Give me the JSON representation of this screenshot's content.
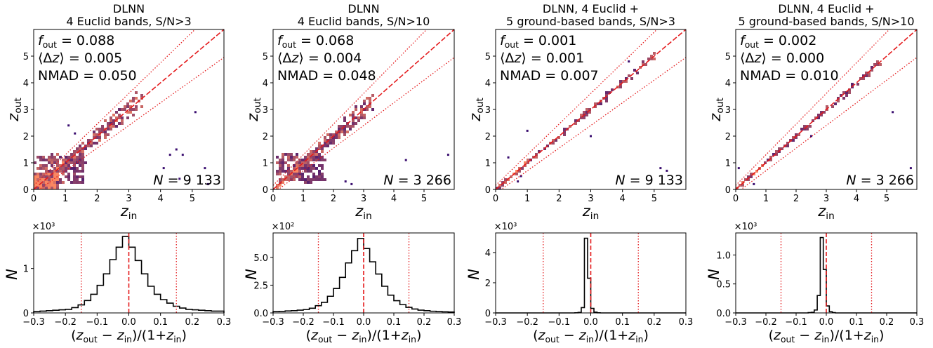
{
  "colors": {
    "one_to_one": "#e41a1c",
    "outlier_bounds": "#e41a1c",
    "hist_line": "#000000",
    "density_low": "#3b0f70",
    "density_high": "#fb8761"
  },
  "chart_data": [
    {
      "type": "heatmap",
      "title_line1": "DLNN",
      "title_line2": "4 Euclid bands, S/N>3",
      "stat_fout": "0.088",
      "stat_dz": "0.005",
      "stat_nmad": "0.050",
      "n_label": "N = 9 133",
      "xlabel": "z_in",
      "ylabel": "z_out",
      "xlim": [
        0,
        6
      ],
      "ylim": [
        0,
        6
      ],
      "xticks": [
        0,
        1,
        2,
        3,
        4,
        5
      ],
      "yticks": [
        0,
        1,
        2,
        3,
        4,
        5
      ],
      "one_to_one": [
        [
          0,
          0
        ],
        [
          6,
          6
        ]
      ],
      "outlier_limits": [
        0.15,
        -0.15
      ],
      "clusters": [
        {
          "x": [
            0.05,
            1.6
          ],
          "y": [
            0.2,
            1.3
          ],
          "density": 0.55
        },
        {
          "x": [
            0.1,
            3.4
          ],
          "y": [
            0.1,
            3.3
          ],
          "density": 0.9,
          "diagonal": true
        },
        {
          "x": [
            0.0,
            0.8
          ],
          "y": [
            0.0,
            0.6
          ],
          "density": 1.0
        }
      ],
      "outliers": [
        [
          4.5,
          1.5
        ],
        [
          4.7,
          1.3
        ],
        [
          4.6,
          0.4
        ],
        [
          5.4,
          0.8
        ],
        [
          5.1,
          2.9
        ],
        [
          5.5,
          0.2
        ],
        [
          4.3,
          1.3
        ],
        [
          1.1,
          2.4
        ],
        [
          1.3,
          2.1
        ],
        [
          4.1,
          0.8
        ]
      ]
    },
    {
      "type": "heatmap",
      "title_line1": "DLNN",
      "title_line2": "4 Euclid bands, S/N>10",
      "stat_fout": "0.068",
      "stat_dz": "0.004",
      "stat_nmad": "0.048",
      "n_label": "N = 3 266",
      "xlabel": "z_in",
      "ylabel": "z_out",
      "xlim": [
        0,
        6
      ],
      "ylim": [
        0,
        6
      ],
      "xticks": [
        0,
        1,
        2,
        3,
        4,
        5
      ],
      "yticks": [
        0,
        1,
        2,
        3,
        4,
        5
      ],
      "one_to_one": [
        [
          0,
          0
        ],
        [
          6,
          6
        ]
      ],
      "outlier_limits": [
        0.15,
        -0.15
      ],
      "clusters": [
        {
          "x": [
            0.1,
            1.7
          ],
          "y": [
            0.3,
            1.3
          ],
          "density": 0.5
        },
        {
          "x": [
            0.1,
            3.3
          ],
          "y": [
            0.1,
            3.2
          ],
          "density": 0.85,
          "diagonal": true
        }
      ],
      "outliers": [
        [
          4.4,
          1.1
        ],
        [
          5.8,
          1.3
        ],
        [
          2.4,
          0.3
        ],
        [
          2.6,
          0.2
        ]
      ]
    },
    {
      "type": "heatmap",
      "title_line1": "DLNN, 4 Euclid +",
      "title_line2": "5 ground-based bands, S/N>3",
      "stat_fout": "0.001",
      "stat_dz": "0.001",
      "stat_nmad": "0.007",
      "n_label": "N = 9 133",
      "xlabel": "z_in",
      "ylabel": "z_out",
      "xlim": [
        0,
        6
      ],
      "ylim": [
        0,
        6
      ],
      "xticks": [
        0,
        1,
        2,
        3,
        4,
        5
      ],
      "yticks": [
        0,
        1,
        2,
        3,
        4,
        5
      ],
      "one_to_one": [
        [
          0,
          0
        ],
        [
          6,
          6
        ]
      ],
      "outlier_limits": [
        0.15,
        -0.15
      ],
      "clusters": [
        {
          "x": [
            0.05,
            5.0
          ],
          "y": [
            0.05,
            5.0
          ],
          "density": 0.8,
          "diagonal": true,
          "tight": true
        }
      ],
      "outliers": [
        [
          0.8,
          0.5
        ],
        [
          0.7,
          0.3
        ],
        [
          5.2,
          0.8
        ],
        [
          5.4,
          0.7
        ],
        [
          0.4,
          1.2
        ],
        [
          1.0,
          2.2
        ],
        [
          3.0,
          2.0
        ],
        [
          4.2,
          4.8
        ]
      ]
    },
    {
      "type": "heatmap",
      "title_line1": "DLNN, 4 Euclid +",
      "title_line2": "5 ground-based bands, S/N>10",
      "stat_fout": "0.002",
      "stat_dz": "0.000",
      "stat_nmad": "0.010",
      "n_label": "N = 3 266",
      "xlabel": "z_in",
      "ylabel": "z_out",
      "xlim": [
        0,
        6
      ],
      "ylim": [
        0,
        6
      ],
      "xticks": [
        0,
        1,
        2,
        3,
        4,
        5
      ],
      "yticks": [
        0,
        1,
        2,
        3,
        4,
        5
      ],
      "one_to_one": [
        [
          0,
          0
        ],
        [
          6,
          6
        ]
      ],
      "outlier_limits": [
        0.15,
        -0.15
      ],
      "clusters": [
        {
          "x": [
            0.05,
            4.8
          ],
          "y": [
            0.05,
            4.8
          ],
          "density": 0.7,
          "diagonal": true,
          "tight": true
        }
      ],
      "outliers": [
        [
          0.1,
          0.8
        ],
        [
          5.2,
          2.9
        ],
        [
          5.8,
          0.8
        ],
        [
          2.5,
          2.0
        ],
        [
          0.6,
          0.2
        ]
      ]
    },
    {
      "type": "line",
      "subtype": "step-histogram",
      "xlabel": "(z_out − z_in)/(1+z_in)",
      "ylabel": "N",
      "multiplier": "×10³",
      "xlim": [
        -0.3,
        0.3
      ],
      "ylim": [
        0,
        1.8
      ],
      "xticks": [
        -0.3,
        -0.2,
        -0.1,
        0.0,
        0.1,
        0.2,
        0.3
      ],
      "yticks": [
        0,
        1
      ],
      "vlines_dotted": [
        -0.15,
        0.15
      ],
      "vline_dashed": 0.0,
      "bin_width": 0.02,
      "bins_start": -0.3,
      "values": [
        0.03,
        0.04,
        0.05,
        0.06,
        0.07,
        0.08,
        0.12,
        0.18,
        0.28,
        0.42,
        0.62,
        0.88,
        1.2,
        1.48,
        1.72,
        1.48,
        1.18,
        0.88,
        0.6,
        0.42,
        0.3,
        0.22,
        0.15,
        0.11,
        0.08,
        0.07,
        0.06,
        0.05,
        0.04,
        0.04
      ]
    },
    {
      "type": "line",
      "subtype": "step-histogram",
      "xlabel": "(z_out − z_in)/(1+z_in)",
      "ylabel": "N",
      "multiplier": "×10²",
      "xlim": [
        -0.3,
        0.3
      ],
      "ylim": [
        0,
        7.2
      ],
      "xticks": [
        -0.3,
        -0.2,
        -0.1,
        0.0,
        0.1,
        0.2,
        0.3
      ],
      "yticks": [
        0.0,
        2.5,
        5.0
      ],
      "vlines_dotted": [
        -0.15,
        0.15
      ],
      "vline_dashed": 0.0,
      "bin_width": 0.02,
      "bins_start": -0.3,
      "values": [
        0.12,
        0.14,
        0.18,
        0.2,
        0.25,
        0.3,
        0.42,
        0.65,
        0.95,
        1.5,
        2.2,
        3.2,
        4.5,
        5.6,
        6.7,
        5.8,
        4.6,
        3.5,
        2.4,
        1.6,
        1.1,
        0.75,
        0.5,
        0.35,
        0.25,
        0.2,
        0.15,
        0.12,
        0.1,
        0.08
      ]
    },
    {
      "type": "line",
      "subtype": "step-histogram",
      "xlabel": "(z_out − z_in)/(1+z_in)",
      "ylabel": "N",
      "multiplier": "×10³",
      "xlim": [
        -0.3,
        0.3
      ],
      "ylim": [
        0,
        5.3
      ],
      "xticks": [
        -0.3,
        -0.2,
        -0.1,
        0.0,
        0.1,
        0.2,
        0.3
      ],
      "yticks": [
        0,
        2,
        4
      ],
      "vlines_dotted": [
        -0.15,
        0.15
      ],
      "vline_dashed": 0.0,
      "bin_width": 0.01,
      "bins_start": -0.3,
      "values": [
        0,
        0,
        0,
        0,
        0,
        0,
        0,
        0,
        0,
        0,
        0,
        0,
        0,
        0,
        0,
        0,
        0,
        0,
        0,
        0,
        0,
        0,
        0,
        0,
        0,
        0.01,
        0.03,
        0.35,
        4.95,
        2.3,
        0.3,
        0.05,
        0.01,
        0,
        0,
        0,
        0,
        0,
        0,
        0,
        0,
        0,
        0,
        0,
        0,
        0,
        0,
        0,
        0,
        0,
        0,
        0,
        0,
        0,
        0,
        0,
        0,
        0,
        0,
        0
      ]
    },
    {
      "type": "line",
      "subtype": "step-histogram",
      "xlabel": "(z_out − z_in)/(1+z_in)",
      "ylabel": "N",
      "multiplier": "×10³",
      "xlim": [
        -0.3,
        0.3
      ],
      "ylim": [
        0,
        1.38
      ],
      "xticks": [
        -0.3,
        -0.2,
        -0.1,
        0.0,
        0.1,
        0.2,
        0.3
      ],
      "yticks": [
        0.0,
        0.5,
        1.0
      ],
      "vlines_dotted": [
        -0.15,
        0.15
      ],
      "vline_dashed": 0.0,
      "bin_width": 0.01,
      "bins_start": -0.3,
      "values": [
        0,
        0,
        0,
        0,
        0,
        0,
        0,
        0,
        0,
        0,
        0,
        0,
        0,
        0,
        0,
        0,
        0,
        0,
        0,
        0,
        0,
        0,
        0,
        0,
        0.005,
        0.01,
        0.05,
        0.3,
        1.3,
        0.75,
        0.12,
        0.02,
        0.005,
        0,
        0,
        0,
        0,
        0,
        0,
        0,
        0,
        0,
        0,
        0,
        0,
        0,
        0,
        0,
        0,
        0,
        0,
        0,
        0,
        0,
        0,
        0,
        0,
        0,
        0,
        0
      ]
    }
  ]
}
